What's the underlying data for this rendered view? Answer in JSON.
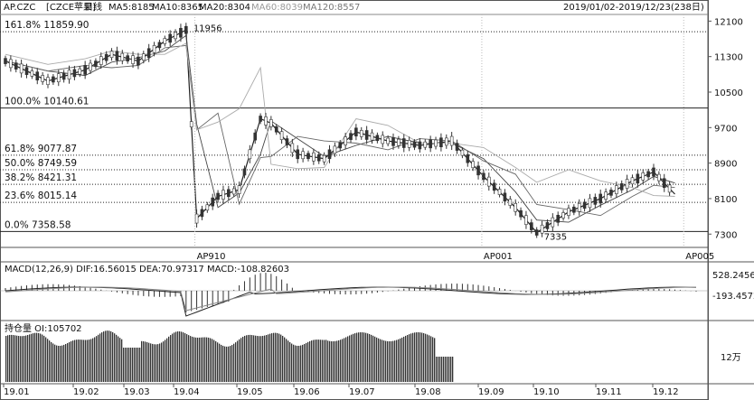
{
  "chart_data": {
    "type": "line",
    "symbol": "AP.CZC",
    "name": "[CZCE苹果]",
    "period": "日线",
    "date_range": "2019/01/02-2019/12/23(238日)",
    "ma": [
      {
        "name": "MA5",
        "value": "8185"
      },
      {
        "name": "MA10",
        "value": "8365"
      },
      {
        "name": "MA20",
        "value": "8304"
      },
      {
        "name": "MA60",
        "value": "8039"
      },
      {
        "name": "MA120",
        "value": "8557"
      }
    ],
    "price_axis": [
      12100,
      11300,
      10500,
      9700,
      8900,
      8100,
      7300
    ],
    "ylim": [
      7000,
      12250
    ],
    "fib_levels": [
      {
        "label": "161.8%",
        "value": "11859.90",
        "v": 11859.9,
        "style": "dotted"
      },
      {
        "label": "100.0%",
        "value": "10140.61",
        "v": 10140.61,
        "style": "solid"
      },
      {
        "label": "61.8%",
        "value": "9077.87",
        "v": 9077.87,
        "style": "dotted"
      },
      {
        "label": "50.0%",
        "value": "8749.59",
        "v": 8749.59,
        "style": "dotted"
      },
      {
        "label": "38.2%",
        "value": "8421.31",
        "v": 8421.31,
        "style": "dotted"
      },
      {
        "label": "23.6%",
        "value": "8015.14",
        "v": 8015.14,
        "style": "dotted"
      },
      {
        "label": "0.0%",
        "value": "7358.58",
        "v": 7358.58,
        "style": "solid"
      }
    ],
    "annotations": [
      {
        "text": "11956",
        "date_index": 33,
        "value": 11956
      },
      {
        "text": "7335",
        "date_index": 189,
        "value": 7335
      }
    ],
    "contracts": [
      "AP910",
      "AP001",
      "AP005"
    ],
    "contract_switch_index": [
      35,
      90,
      196,
      238
    ],
    "x_labels": [
      "19.01",
      "19.02",
      "19.03",
      "19.04",
      "19.05",
      "19.06",
      "19.07",
      "19.08",
      "19.09",
      "19.10",
      "19.11",
      "19.12"
    ],
    "price_series": [
      {
        "d": 0,
        "v": 11200
      },
      {
        "d": 8,
        "v": 10750
      },
      {
        "d": 15,
        "v": 11000
      },
      {
        "d": 20,
        "v": 11350
      },
      {
        "d": 25,
        "v": 11200
      },
      {
        "d": 30,
        "v": 11650
      },
      {
        "d": 34,
        "v": 11900
      },
      {
        "d": 36,
        "v": 7650
      },
      {
        "d": 40,
        "v": 8150
      },
      {
        "d": 44,
        "v": 8300
      },
      {
        "d": 48,
        "v": 9900
      },
      {
        "d": 50,
        "v": 9800
      },
      {
        "d": 55,
        "v": 9100
      },
      {
        "d": 60,
        "v": 9000
      },
      {
        "d": 66,
        "v": 9600
      },
      {
        "d": 72,
        "v": 9400
      },
      {
        "d": 78,
        "v": 9300
      },
      {
        "d": 84,
        "v": 9400
      },
      {
        "d": 90,
        "v": 8600
      },
      {
        "d": 96,
        "v": 7900
      },
      {
        "d": 100,
        "v": 7335
      },
      {
        "d": 106,
        "v": 7800
      },
      {
        "d": 112,
        "v": 8100
      },
      {
        "d": 118,
        "v": 8500
      },
      {
        "d": 122,
        "v": 8700
      },
      {
        "d": 126,
        "v": 8200
      }
    ],
    "macd": {
      "label": "MACD(12,26,9)",
      "dif": "DIF:16.56015",
      "dea": "DEA:70.97317",
      "macd": "MACD:-108.82603",
      "top": "528.2456",
      "bottom": "-193.4572"
    },
    "oi": {
      "label": "持仓量 OI:105702",
      "axis": "12万"
    }
  }
}
